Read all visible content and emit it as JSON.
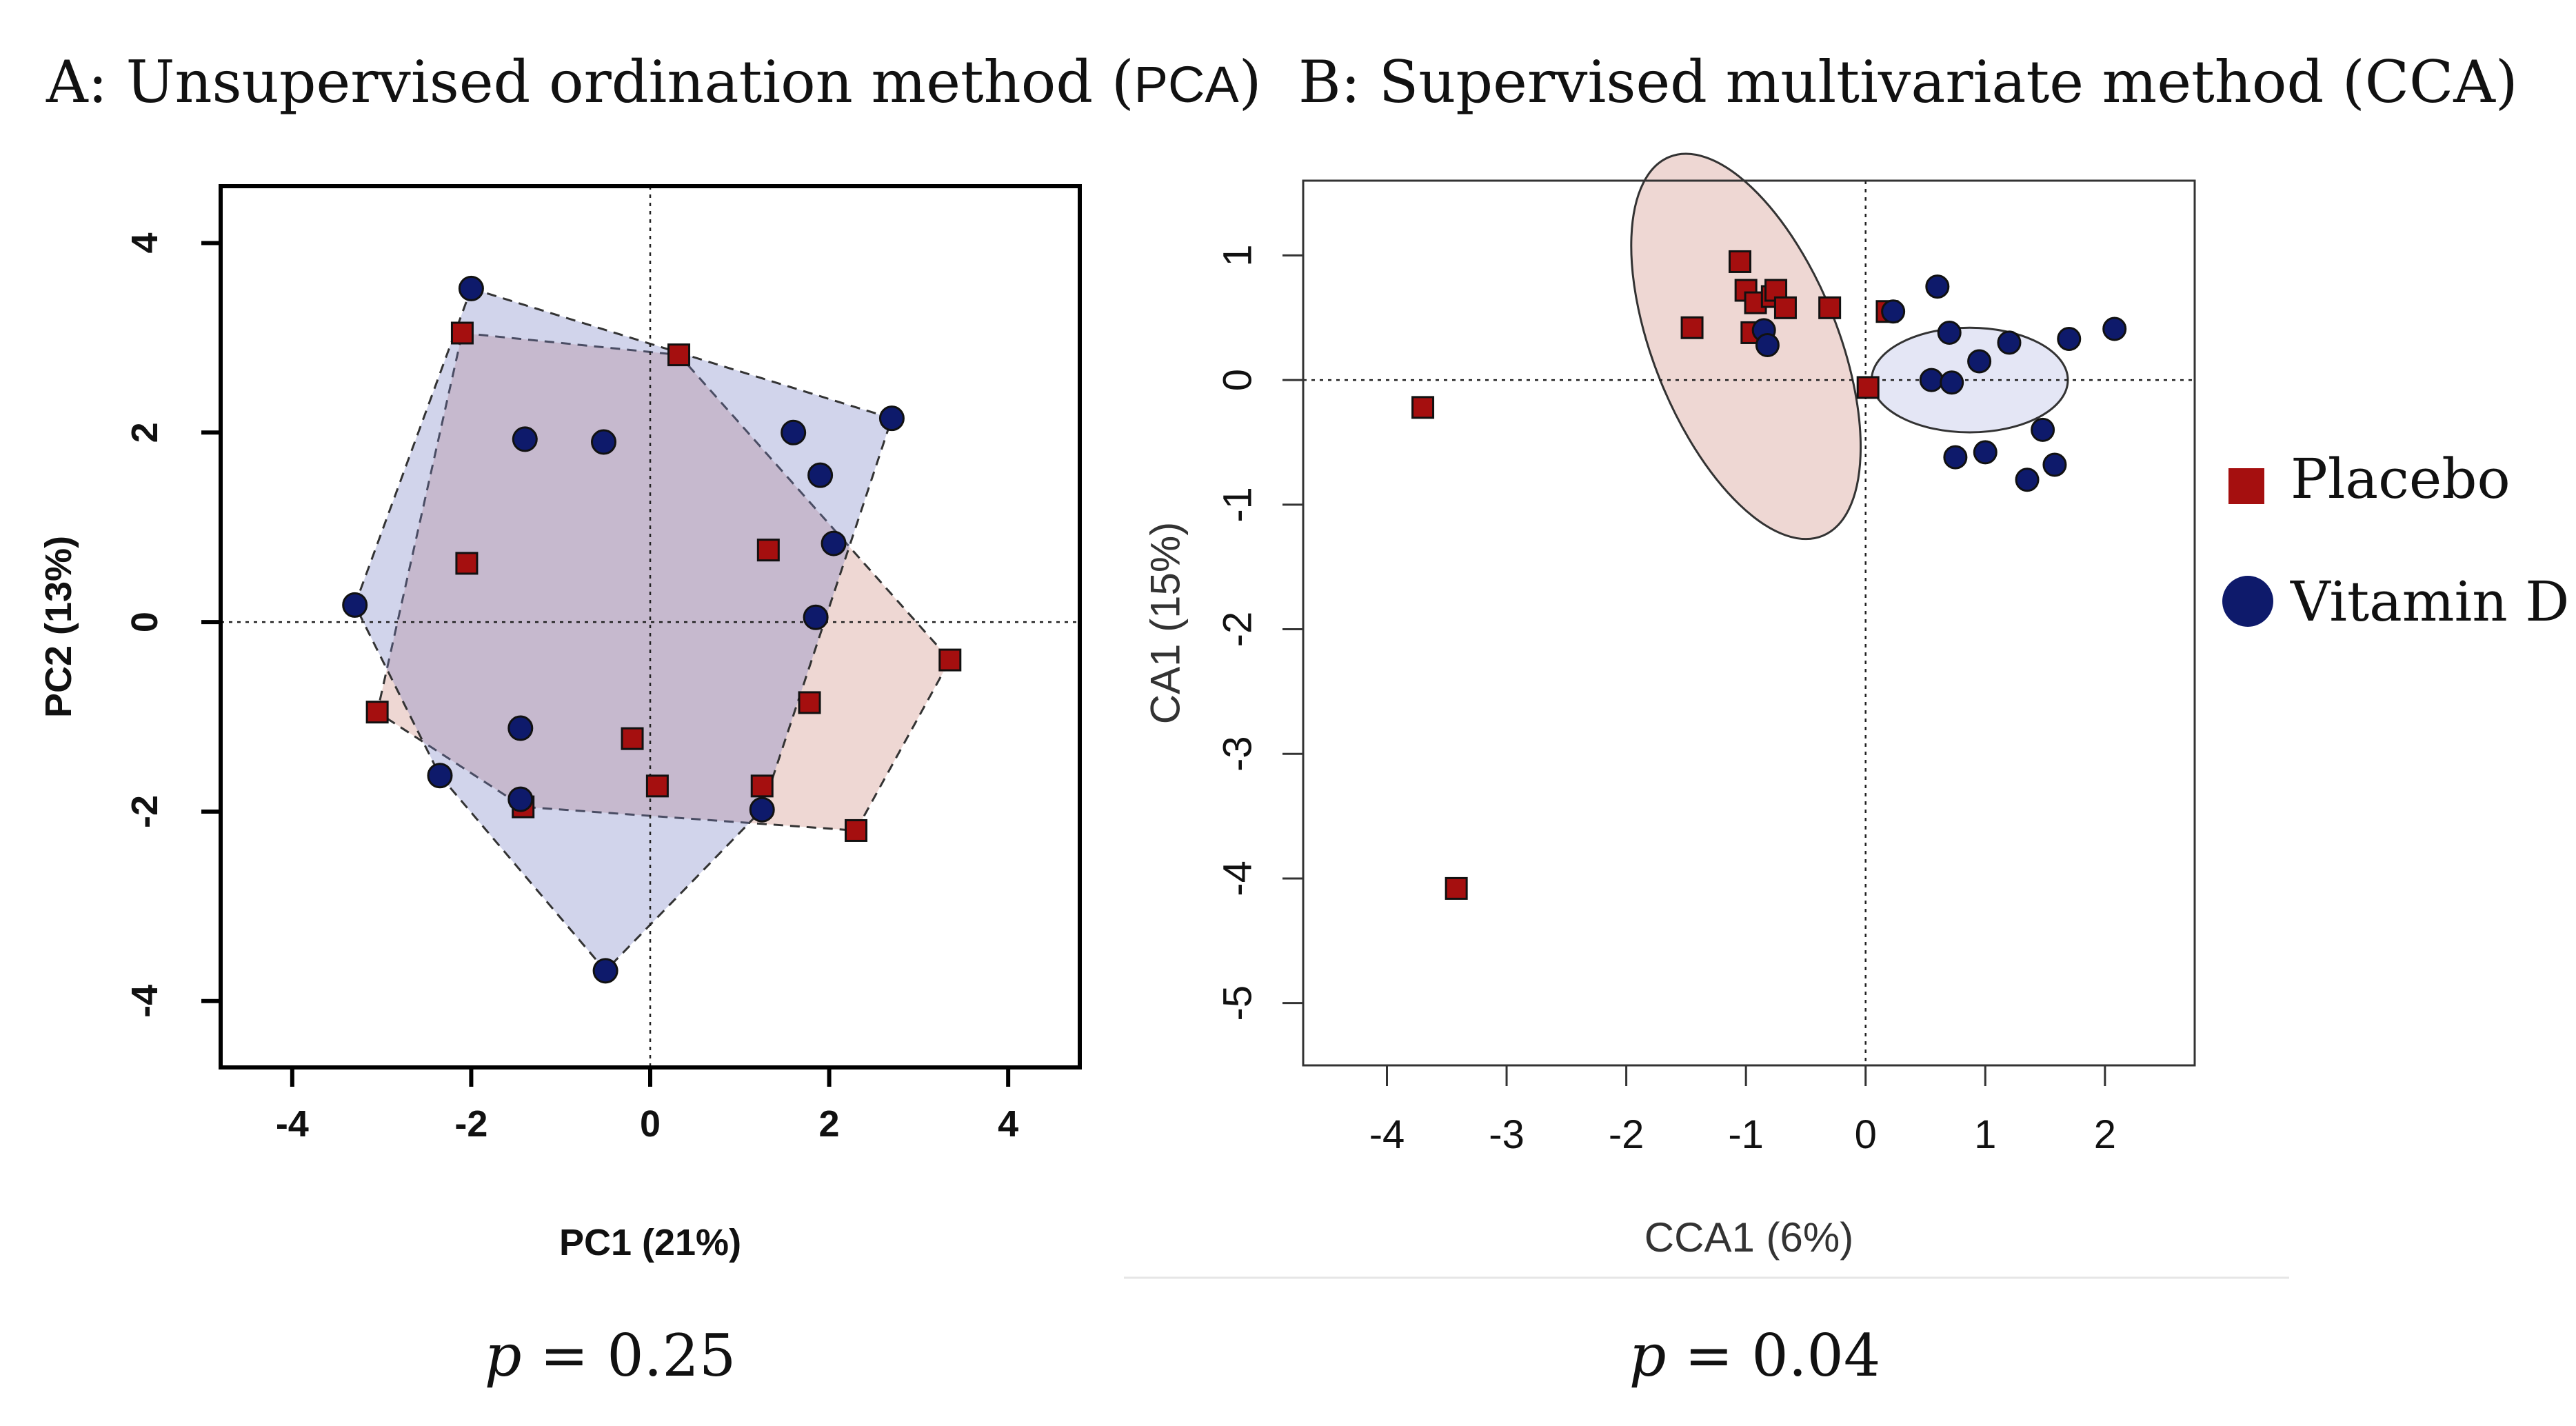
{
  "figure": {
    "legend": {
      "placement": "right",
      "items": [
        {
          "label": "Placebo",
          "color": "#a50f0f",
          "marker": "square"
        },
        {
          "label": "Vitamin D",
          "color": "#0e1a6b",
          "marker": "circle"
        }
      ]
    }
  },
  "chart_data": [
    {
      "id": "pca",
      "type": "scatter",
      "title_prefix": "A: Unsupervised ordination method (",
      "title_abbr": "PCA",
      "title_suffix": ")",
      "xlabel": "PC1 (21%)",
      "ylabel": "PC2 (13%)",
      "xlim": [
        -4.8,
        4.8
      ],
      "ylim": [
        -4.7,
        4.6
      ],
      "xticks": [
        -4,
        -2,
        0,
        2,
        4
      ],
      "yticks": [
        -4,
        -2,
        0,
        2,
        4
      ],
      "reference_lines": {
        "x": 0,
        "y": 0
      },
      "p_label": "p",
      "p_value": "= 0.25",
      "series": [
        {
          "name": "Placebo",
          "color": "#a50f0f",
          "hull_fill": "rgba(214,160,150,0.42)",
          "marker": "square",
          "points": [
            [
              -2.1,
              3.05
            ],
            [
              0.32,
              2.82
            ],
            [
              -2.05,
              0.62
            ],
            [
              -3.05,
              -0.95
            ],
            [
              1.32,
              0.76
            ],
            [
              3.35,
              -0.4
            ],
            [
              1.78,
              -0.85
            ],
            [
              -0.2,
              -1.23
            ],
            [
              0.08,
              -1.73
            ],
            [
              1.25,
              -1.73
            ],
            [
              -1.42,
              -1.95
            ],
            [
              2.3,
              -2.2
            ]
          ],
          "hull": [
            [
              -2.1,
              3.05
            ],
            [
              0.32,
              2.82
            ],
            [
              3.35,
              -0.4
            ],
            [
              2.3,
              -2.2
            ],
            [
              -1.42,
              -1.95
            ],
            [
              -3.05,
              -0.95
            ]
          ]
        },
        {
          "name": "Vitamin D",
          "color": "#0e1a6b",
          "hull_fill": "rgba(120,130,195,0.34)",
          "marker": "circle",
          "points": [
            [
              -2.0,
              3.52
            ],
            [
              -1.4,
              1.93
            ],
            [
              -0.52,
              1.9
            ],
            [
              1.6,
              2.0
            ],
            [
              1.9,
              1.55
            ],
            [
              2.7,
              2.15
            ],
            [
              2.05,
              0.83
            ],
            [
              1.85,
              0.05
            ],
            [
              -3.3,
              0.18
            ],
            [
              -1.45,
              -1.12
            ],
            [
              -2.35,
              -1.62
            ],
            [
              -1.45,
              -1.87
            ],
            [
              1.25,
              -1.98
            ],
            [
              -0.5,
              -3.68
            ]
          ],
          "hull": [
            [
              -2.0,
              3.52
            ],
            [
              2.7,
              2.15
            ],
            [
              1.25,
              -1.98
            ],
            [
              -0.5,
              -3.68
            ],
            [
              -2.35,
              -1.62
            ],
            [
              -3.3,
              0.18
            ]
          ]
        }
      ]
    },
    {
      "id": "cca",
      "type": "scatter",
      "title": "B: Supervised multivariate method (CCA)",
      "xlabel": "CCA1 (6%)",
      "ylabel": "CA1 (15%)",
      "xlim": [
        -4.7,
        2.75
      ],
      "ylim": [
        -5.5,
        1.6
      ],
      "xticks": [
        -4,
        -3,
        -2,
        -1,
        0,
        1,
        2
      ],
      "yticks": [
        -5,
        -4,
        -3,
        -2,
        -1,
        0,
        1
      ],
      "reference_lines": {
        "x": 0,
        "y": 0
      },
      "p_label": "p",
      "p_value": "= 0.04",
      "series": [
        {
          "name": "Placebo",
          "color": "#a50f0f",
          "marker": "square",
          "points": [
            [
              -1.05,
              0.95
            ],
            [
              -1.0,
              0.72
            ],
            [
              -0.92,
              0.62
            ],
            [
              -0.78,
              0.67
            ],
            [
              -0.75,
              0.72
            ],
            [
              -0.67,
              0.58
            ],
            [
              -0.3,
              0.58
            ],
            [
              -1.45,
              0.42
            ],
            [
              -0.95,
              0.38
            ],
            [
              0.18,
              0.55
            ],
            [
              0.02,
              -0.06
            ],
            [
              -3.7,
              -0.22
            ],
            [
              -3.42,
              -4.08
            ]
          ],
          "ellipse": {
            "center": [
              -1.0,
              0.27
            ],
            "semi_axes": [
              0.77,
              1.64
            ],
            "rotation_deg": -22,
            "fill": "rgba(214,160,150,0.42)"
          }
        },
        {
          "name": "Vitamin D",
          "color": "#0e1a6b",
          "marker": "circle",
          "points": [
            [
              0.6,
              0.75
            ],
            [
              0.23,
              0.55
            ],
            [
              -0.85,
              0.4
            ],
            [
              -0.82,
              0.28
            ],
            [
              0.7,
              0.38
            ],
            [
              1.7,
              0.33
            ],
            [
              2.08,
              0.41
            ],
            [
              1.2,
              0.3
            ],
            [
              0.95,
              0.15
            ],
            [
              0.55,
              0.0
            ],
            [
              0.72,
              -0.02
            ],
            [
              1.48,
              -0.4
            ],
            [
              0.75,
              -0.62
            ],
            [
              1.0,
              -0.58
            ],
            [
              1.58,
              -0.68
            ],
            [
              1.35,
              -0.8
            ]
          ],
          "ellipse": {
            "center": [
              0.87,
              0.0
            ],
            "semi_axes": [
              0.82,
              0.42
            ],
            "rotation_deg": 0,
            "fill": "rgba(185,190,228,0.38)"
          }
        }
      ]
    }
  ]
}
